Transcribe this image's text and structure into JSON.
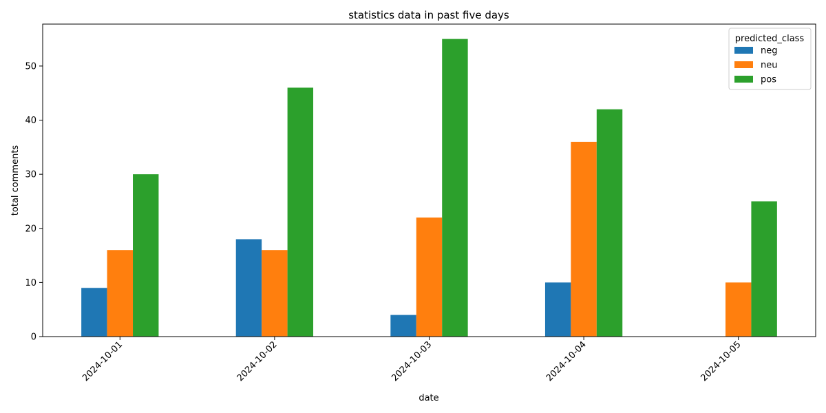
{
  "chart_data": {
    "type": "bar",
    "title": "statistics data in past five days",
    "xlabel": "date",
    "ylabel": "total comments",
    "categories": [
      "2024-10-01",
      "2024-10-02",
      "2024-10-03",
      "2024-10-04",
      "2024-10-05"
    ],
    "series": [
      {
        "name": "neg",
        "color": "#1f77b4",
        "values": [
          9,
          18,
          4,
          10,
          0
        ]
      },
      {
        "name": "neu",
        "color": "#ff7f0e",
        "values": [
          16,
          16,
          22,
          36,
          10
        ]
      },
      {
        "name": "pos",
        "color": "#2ca02c",
        "values": [
          30,
          46,
          55,
          42,
          25
        ]
      }
    ],
    "ylim": [
      0,
      57.75
    ],
    "yticks": [
      0,
      10,
      20,
      30,
      40,
      50
    ],
    "grid": false,
    "legend": {
      "title": "predicted_class",
      "position": "top-right"
    }
  }
}
